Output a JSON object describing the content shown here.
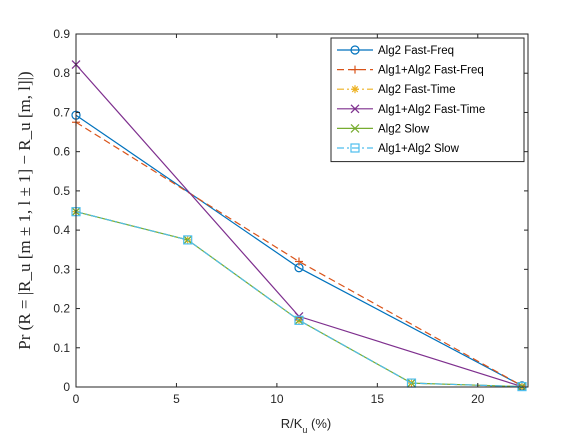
{
  "chart_data": {
    "type": "line",
    "xlabel_main": "R/K",
    "xlabel_sub": "u",
    "xlabel_tail": " (%)",
    "ylabel": "Pr (R = |R_u [m ± 1, l ± 1] − R_u [m, l]|)",
    "xlim": [
      0,
      22.5
    ],
    "ylim": [
      0,
      0.9
    ],
    "xticks": [
      0,
      5,
      10,
      15,
      20
    ],
    "yticks": [
      0,
      0.1,
      0.2,
      0.3,
      0.4,
      0.5,
      0.6,
      0.7,
      0.8,
      0.9
    ],
    "legend_position": "top-right",
    "grid": false,
    "series": [
      {
        "name": "Alg2 Fast-Freq",
        "x": [
          0,
          11.1,
          22.2
        ],
        "y": [
          0.693,
          0.304,
          0.003
        ],
        "color": "#0072BD",
        "dash": "",
        "marker": "circle"
      },
      {
        "name": "Alg1+Alg2 Fast-Freq",
        "x": [
          0,
          11.1,
          22.2
        ],
        "y": [
          0.675,
          0.32,
          0.003
        ],
        "color": "#D95319",
        "dash": "7,4",
        "marker": "plus"
      },
      {
        "name": "Alg2 Fast-Time",
        "x": [
          0,
          5.56,
          11.1,
          16.7,
          22.2
        ],
        "y": [
          0.447,
          0.375,
          0.17,
          0.01,
          0.001
        ],
        "color": "#EDB120",
        "dash": "7,3,2,3",
        "marker": "asterisk"
      },
      {
        "name": "Alg1+Alg2 Fast-Time",
        "x": [
          0,
          11.1,
          22.2
        ],
        "y": [
          0.822,
          0.18,
          0.001
        ],
        "color": "#7E2F8E",
        "dash": "",
        "marker": "x"
      },
      {
        "name": "Alg2 Slow",
        "x": [
          0,
          5.56,
          11.1,
          16.7,
          22.2
        ],
        "y": [
          0.447,
          0.375,
          0.17,
          0.01,
          0.001
        ],
        "color": "#77AC30",
        "dash": "",
        "marker": "x"
      },
      {
        "name": "Alg1+Alg2 Slow",
        "x": [
          0,
          5.56,
          11.1,
          16.7,
          22.2
        ],
        "y": [
          0.447,
          0.375,
          0.17,
          0.01,
          0.001
        ],
        "color": "#4DBEEE",
        "dash": "7,3,2,3",
        "marker": "square"
      }
    ]
  }
}
